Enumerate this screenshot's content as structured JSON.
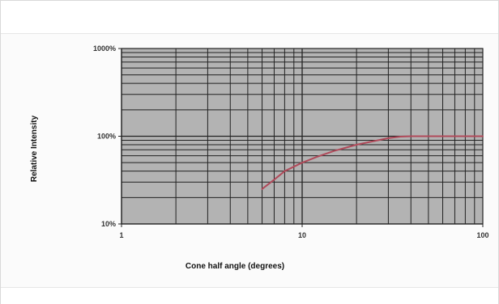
{
  "chart_data": {
    "type": "line",
    "title": "",
    "xlabel": "Cone half angle (degrees)",
    "ylabel": "Relative Intensity",
    "xscale": "log",
    "yscale": "log",
    "xlim": [
      1,
      100
    ],
    "ylim": [
      0.1,
      10
    ],
    "grid": true,
    "legend": "none",
    "x_ticks": [
      {
        "value": 1,
        "label": "1"
      },
      {
        "value": 10,
        "label": "10"
      },
      {
        "value": 100,
        "label": "100"
      }
    ],
    "y_ticks": [
      {
        "value": 0.1,
        "label": "10%"
      },
      {
        "value": 1,
        "label": "100%"
      },
      {
        "value": 10,
        "label": "1000%"
      }
    ],
    "series": [
      {
        "color": "#b04a5a",
        "x": [
          6,
          7,
          8,
          10,
          12,
          15,
          20,
          25,
          30,
          35,
          40,
          50,
          60,
          80,
          100
        ],
        "y": [
          0.25,
          0.32,
          0.4,
          0.5,
          0.58,
          0.68,
          0.8,
          0.88,
          0.95,
          0.99,
          1.0,
          1.0,
          1.0,
          1.0,
          1.0
        ]
      }
    ],
    "colors": {
      "plot_background": "#b3b3b3",
      "grid": "#222222",
      "line": "#b04a5a"
    }
  }
}
